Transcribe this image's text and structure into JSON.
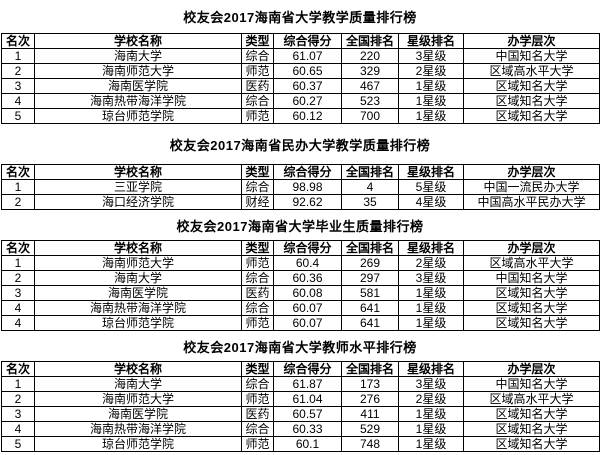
{
  "page": {
    "background_color": "#ffffff",
    "text_color": "#000000",
    "border_color": "#000000"
  },
  "columns": [
    "名次",
    "学校名称",
    "类型",
    "综合得分",
    "全国排名",
    "星级排名",
    "办学层次"
  ],
  "tables": [
    {
      "title": "校友会2017海南省大学教学质量排行榜",
      "rows": [
        [
          "1",
          "海南大学",
          "综合",
          "61.07",
          "220",
          "3星级",
          "中国知名大学"
        ],
        [
          "2",
          "海南师范大学",
          "师范",
          "60.65",
          "329",
          "2星级",
          "区域高水平大学"
        ],
        [
          "3",
          "海南医学院",
          "医药",
          "60.37",
          "467",
          "1星级",
          "区域知名大学"
        ],
        [
          "4",
          "海南热带海洋学院",
          "综合",
          "60.27",
          "523",
          "1星级",
          "区域知名大学"
        ],
        [
          "5",
          "琼台师范学院",
          "师范",
          "60.12",
          "700",
          "1星级",
          "区域知名大学"
        ]
      ]
    },
    {
      "title": "校友会2017海南省民办大学教学质量排行榜",
      "rows": [
        [
          "1",
          "三亚学院",
          "综合",
          "98.98",
          "4",
          "5星级",
          "中国一流民办大学"
        ],
        [
          "2",
          "海口经济学院",
          "财经",
          "92.62",
          "35",
          "4星级",
          "中国高水平民办大学"
        ]
      ]
    },
    {
      "title": "校友会2017海南省大学毕业生质量排行榜",
      "rows": [
        [
          "1",
          "海南师范大学",
          "师范",
          "60.4",
          "269",
          "2星级",
          "区域高水平大学"
        ],
        [
          "2",
          "海南大学",
          "综合",
          "60.36",
          "297",
          "3星级",
          "中国知名大学"
        ],
        [
          "3",
          "海南医学院",
          "医药",
          "60.08",
          "581",
          "1星级",
          "区域知名大学"
        ],
        [
          "4",
          "海南热带海洋学院",
          "综合",
          "60.07",
          "641",
          "1星级",
          "区域知名大学"
        ],
        [
          "4",
          "琼台师范学院",
          "师范",
          "60.07",
          "641",
          "1星级",
          "区域知名大学"
        ]
      ]
    },
    {
      "title": "校友会2017海南省大学教师水平排行榜",
      "rows": [
        [
          "1",
          "海南大学",
          "综合",
          "61.87",
          "173",
          "3星级",
          "中国知名大学"
        ],
        [
          "2",
          "海南师范大学",
          "师范",
          "61.04",
          "276",
          "2星级",
          "区域高水平大学"
        ],
        [
          "3",
          "海南医学院",
          "医药",
          "60.57",
          "411",
          "1星级",
          "区域知名大学"
        ],
        [
          "4",
          "海南热带海洋学院",
          "综合",
          "60.33",
          "529",
          "1星级",
          "区域知名大学"
        ],
        [
          "5",
          "琼台师范学院",
          "师范",
          "60.1",
          "748",
          "1星级",
          "区域知名大学"
        ]
      ]
    }
  ]
}
